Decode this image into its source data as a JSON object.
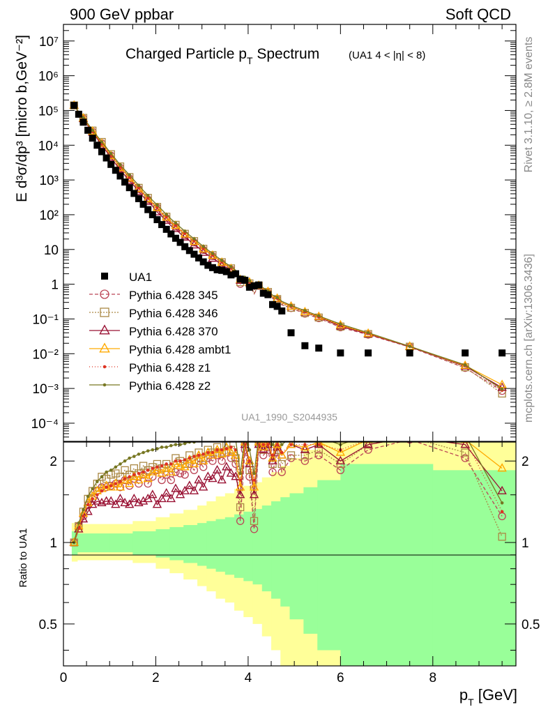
{
  "header": {
    "left": "900 GeV ppbar",
    "right": "Soft QCD"
  },
  "side_labels": {
    "rivet": "Rivet 3.1.10, ≥ 2.8M events",
    "mcplots": "mcplots.cern.ch [arXiv:1306.3436]"
  },
  "watermark": "UA1_1990_S2044935",
  "chart_data": [
    {
      "type": "scatter",
      "title_main": "Charged Particle p",
      "title_sub": "T",
      "title_main_after": " Spectrum",
      "title_tag": "(UA1   4 < |η| < 8)",
      "ylabel": "E d³σ/dp³ [micro b,GeV⁻²]",
      "xlim": [
        0,
        9.8
      ],
      "ylim": [
        3e-05,
        30000000
      ],
      "yscale": "log",
      "ytick_labels": [
        {
          "v": 0.0001,
          "label": "10⁻⁴"
        },
        {
          "v": 0.001,
          "label": "10⁻³"
        },
        {
          "v": 0.01,
          "label": "10⁻²"
        },
        {
          "v": 0.1,
          "label": "10⁻¹"
        },
        {
          "v": 1,
          "label": "1"
        },
        {
          "v": 10,
          "label": "10"
        },
        {
          "v": 100,
          "label": "10²"
        },
        {
          "v": 1000,
          "label": "10³"
        },
        {
          "v": 10000,
          "label": "10⁴"
        },
        {
          "v": 100000,
          "label": "10⁵"
        },
        {
          "v": 1000000,
          "label": "10⁶"
        },
        {
          "v": 10000000,
          "label": "10⁷"
        }
      ],
      "legend_position": "left-middle",
      "data_series": {
        "name": "UA1",
        "color": "#000000",
        "x": [
          0.23,
          0.33,
          0.43,
          0.53,
          0.63,
          0.73,
          0.83,
          0.93,
          1.03,
          1.13,
          1.23,
          1.33,
          1.43,
          1.53,
          1.63,
          1.73,
          1.83,
          1.93,
          2.03,
          2.13,
          2.23,
          2.33,
          2.43,
          2.53,
          2.63,
          2.73,
          2.83,
          2.93,
          3.03,
          3.13,
          3.23,
          3.33,
          3.43,
          3.53,
          3.63,
          3.73,
          3.83,
          3.93,
          4.03,
          4.13,
          4.23,
          4.33,
          4.43,
          4.53,
          4.63,
          4.73,
          4.93,
          5.23,
          5.53,
          6.0,
          6.6,
          7.5,
          8.7,
          9.5
        ],
        "y": [
          140000,
          78000,
          47000,
          28000,
          17000,
          11000,
          7100,
          4700,
          3100,
          2100,
          1400,
          970,
          680,
          470,
          330,
          230,
          165,
          118,
          86,
          62,
          45,
          33,
          25,
          19,
          14.5,
          11,
          8.6,
          6.6,
          5.1,
          4.0,
          3.2,
          2.5,
          2.0,
          1.6,
          1.3,
          1.05,
          0.85,
          0.7,
          0.57,
          0.47,
          0.39,
          0.32,
          0.26,
          0.21,
          0.17,
          0.14,
          0.1,
          0.071,
          0.05,
          0.031,
          0.016,
          0.0065,
          0.0019,
          0.00068
        ],
        "y_draw": [
          140000,
          78000,
          46000,
          27000,
          16000,
          10000,
          6500,
          4300,
          2800,
          1900,
          1300,
          870,
          600,
          410,
          290,
          200,
          140,
          100,
          72,
          52,
          38,
          28,
          21,
          16,
          12,
          9.3,
          7.3,
          5.7,
          4.4,
          3.5,
          3.0,
          2.6,
          2.5,
          2.3,
          1.85,
          2.0,
          1.4,
          1.3,
          0.82,
          0.9,
          0.95,
          0.55,
          0.5,
          0.26,
          0.23,
          0.17,
          0.04,
          0.017,
          0.0145,
          0.0105,
          0.0105,
          0.0105,
          0.0105,
          0.0105
        ]
      },
      "mc_series": [
        {
          "name": "Pythia 6.428 345",
          "color": "#bb4455",
          "dash": "5,3",
          "marker": "circle",
          "ratio": [
            1.0,
            1.15,
            1.25,
            1.38,
            1.45,
            1.55,
            1.6,
            1.6,
            1.62,
            1.65,
            1.6,
            1.7,
            1.62,
            1.72,
            1.65,
            1.78,
            1.65,
            1.75,
            1.85,
            1.7,
            1.78,
            1.7,
            1.82,
            1.8,
            1.78,
            1.95,
            1.85,
            2.0,
            1.9,
            2.05,
            2.0,
            2.1,
            2.0,
            2.15,
            2.05,
            1.95,
            1.2,
            2.2,
            1.75,
            1.12,
            2.3,
            2.1,
            2.2,
            1.82,
            2.15,
            1.82,
            2.05,
            2.0,
            2.1,
            1.85,
            2.2,
            2.4,
            2.05,
            1.25
          ]
        },
        {
          "name": "Pythia 6.428 346",
          "color": "#aa8844",
          "dash": "2,2",
          "marker": "square",
          "ratio": [
            1.0,
            1.15,
            1.3,
            1.45,
            1.55,
            1.65,
            1.75,
            1.72,
            1.78,
            1.8,
            1.75,
            1.85,
            1.78,
            1.88,
            1.8,
            1.92,
            1.85,
            1.9,
            1.95,
            1.88,
            1.95,
            1.88,
            2.05,
            2.0,
            1.95,
            2.1,
            2.02,
            2.15,
            2.05,
            2.2,
            2.15,
            2.25,
            2.15,
            2.3,
            2.2,
            2.05,
            1.35,
            2.35,
            1.85,
            1.2,
            2.35,
            2.2,
            2.3,
            1.95,
            2.2,
            1.95,
            2.1,
            2.1,
            2.2,
            1.95,
            2.3,
            2.45,
            2.15,
            1.05
          ]
        },
        {
          "name": "Pythia 6.428 370",
          "color": "#991133",
          "dash": "",
          "marker": "triangle",
          "ratio": [
            1.0,
            1.12,
            1.22,
            1.3,
            1.38,
            1.42,
            1.4,
            1.42,
            1.42,
            1.38,
            1.45,
            1.4,
            1.38,
            1.45,
            1.4,
            1.42,
            1.45,
            1.5,
            1.38,
            1.45,
            1.52,
            1.45,
            1.58,
            1.5,
            1.55,
            1.62,
            1.55,
            1.7,
            1.6,
            1.75,
            1.72,
            1.85,
            1.7,
            1.9,
            1.8,
            1.75,
            1.5,
            2.3,
            1.95,
            1.5,
            2.3,
            2.2,
            2.3,
            2.0,
            2.25,
            2.1,
            2.3,
            2.2,
            2.3,
            2.0,
            2.3,
            2.45,
            2.3,
            1.55
          ]
        },
        {
          "name": "Pythia 6.428 ambt1",
          "color": "#ffaa00",
          "dash": "",
          "marker": "triangle",
          "ratio": [
            1.0,
            1.15,
            1.28,
            1.4,
            1.48,
            1.55,
            1.58,
            1.62,
            1.6,
            1.65,
            1.6,
            1.7,
            1.65,
            1.75,
            1.7,
            1.78,
            1.72,
            1.82,
            1.85,
            1.8,
            1.88,
            1.82,
            1.95,
            1.92,
            1.9,
            2.02,
            1.95,
            2.1,
            2.0,
            2.15,
            2.1,
            2.2,
            2.12,
            2.25,
            2.15,
            2.1,
            1.6,
            2.35,
            2.0,
            1.6,
            2.35,
            2.25,
            2.35,
            2.05,
            2.3,
            2.1,
            2.3,
            2.25,
            2.35,
            2.15,
            2.4,
            2.5,
            2.4,
            1.88
          ]
        },
        {
          "name": "Pythia 6.428 z1",
          "color": "#dd3322",
          "dash": "1,3",
          "marker": "dot",
          "ratio": [
            1.0,
            1.13,
            1.25,
            1.38,
            1.45,
            1.5,
            1.55,
            1.6,
            1.62,
            1.65,
            1.68,
            1.72,
            1.75,
            1.78,
            1.8,
            1.82,
            1.85,
            1.88,
            1.9,
            1.92,
            1.95,
            1.95,
            2.0,
            2.0,
            2.02,
            2.05,
            2.08,
            2.1,
            2.12,
            2.15,
            2.15,
            2.2,
            2.2,
            2.22,
            2.25,
            2.2,
            1.7,
            2.3,
            2.0,
            1.7,
            2.3,
            2.3,
            2.3,
            2.1,
            2.3,
            2.15,
            2.3,
            2.3,
            2.3,
            2.2,
            2.4,
            2.5,
            2.4,
            1.3
          ]
        },
        {
          "name": "Pythia 6.428 z2",
          "color": "#777722",
          "dash": "",
          "marker": "dot",
          "ratio": [
            1.0,
            1.18,
            1.32,
            1.48,
            1.58,
            1.68,
            1.75,
            1.82,
            1.85,
            1.9,
            1.95,
            2.0,
            2.05,
            2.08,
            2.12,
            2.15,
            2.18,
            2.2,
            2.22,
            2.25,
            2.25,
            2.28,
            2.3,
            2.3,
            2.32,
            2.35,
            2.35,
            2.38,
            2.4,
            2.4,
            2.4,
            2.42,
            2.42,
            2.45,
            2.45,
            2.4,
            1.8,
            2.45,
            2.2,
            1.8,
            2.45,
            2.45,
            2.45,
            2.3,
            2.45,
            2.3,
            2.45,
            2.45,
            2.45,
            2.3,
            2.5,
            2.5,
            2.5,
            1.4
          ]
        }
      ]
    },
    {
      "type": "line",
      "ylabel": "Ratio to UA1",
      "xlabel_main": "p",
      "xlabel_sub": "T",
      "xlabel_after": " [GeV]",
      "xlim": [
        0,
        9.8
      ],
      "ylim": [
        0.35,
        2.35
      ],
      "yscale": "log",
      "ytick_labels": [
        {
          "v": 0.5,
          "label": "0.5"
        },
        {
          "v": 1,
          "label": "1"
        },
        {
          "v": 2,
          "label": "2"
        }
      ],
      "xtick_labels": [
        {
          "v": 0,
          "label": "0"
        },
        {
          "v": 2,
          "label": "2"
        },
        {
          "v": 4,
          "label": "4"
        },
        {
          "v": 6,
          "label": "6"
        },
        {
          "v": 8,
          "label": "8"
        }
      ],
      "band_1sigma_color": "#99ff99",
      "band_2sigma_color": "#ffff99",
      "band_edges": [
        0.18,
        0.3,
        0.5,
        1.0,
        1.5,
        2.0,
        2.3,
        2.6,
        2.9,
        3.1,
        3.3,
        3.5,
        3.7,
        3.9,
        4.1,
        4.3,
        4.5,
        4.7,
        4.9,
        5.2,
        5.5,
        6.0,
        6.9,
        8.0,
        9.8
      ],
      "band_1sigma": [
        [
          0.9,
          1.1
        ],
        [
          0.92,
          1.08
        ],
        [
          0.92,
          1.08
        ],
        [
          0.92,
          1.08
        ],
        [
          0.9,
          1.1
        ],
        [
          0.88,
          1.12
        ],
        [
          0.86,
          1.14
        ],
        [
          0.84,
          1.16
        ],
        [
          0.82,
          1.18
        ],
        [
          0.8,
          1.2
        ],
        [
          0.78,
          1.22
        ],
        [
          0.76,
          1.24
        ],
        [
          0.74,
          1.27
        ],
        [
          0.72,
          1.3
        ],
        [
          0.7,
          1.33
        ],
        [
          0.66,
          1.37
        ],
        [
          0.62,
          1.42
        ],
        [
          0.58,
          1.47
        ],
        [
          0.52,
          1.52
        ],
        [
          0.46,
          1.6
        ],
        [
          0.4,
          1.7
        ],
        [
          0.35,
          1.95
        ],
        [
          0.35,
          1.95
        ],
        [
          0.35,
          1.85
        ]
      ],
      "band_2sigma": [
        [
          0.85,
          1.18
        ],
        [
          0.86,
          1.17
        ],
        [
          0.86,
          1.17
        ],
        [
          0.86,
          1.17
        ],
        [
          0.84,
          1.2
        ],
        [
          0.8,
          1.24
        ],
        [
          0.77,
          1.28
        ],
        [
          0.73,
          1.32
        ],
        [
          0.69,
          1.37
        ],
        [
          0.66,
          1.42
        ],
        [
          0.62,
          1.48
        ],
        [
          0.6,
          1.52
        ],
        [
          0.56,
          1.58
        ],
        [
          0.53,
          1.62
        ],
        [
          0.5,
          1.67
        ],
        [
          0.45,
          1.74
        ],
        [
          0.4,
          1.82
        ],
        [
          0.35,
          1.92
        ],
        [
          0.35,
          2.05
        ],
        [
          0.35,
          2.2
        ],
        [
          0.35,
          2.35
        ],
        [
          0.35,
          2.35
        ],
        [
          0.35,
          2.35
        ],
        [
          0.35,
          2.35
        ]
      ]
    }
  ]
}
